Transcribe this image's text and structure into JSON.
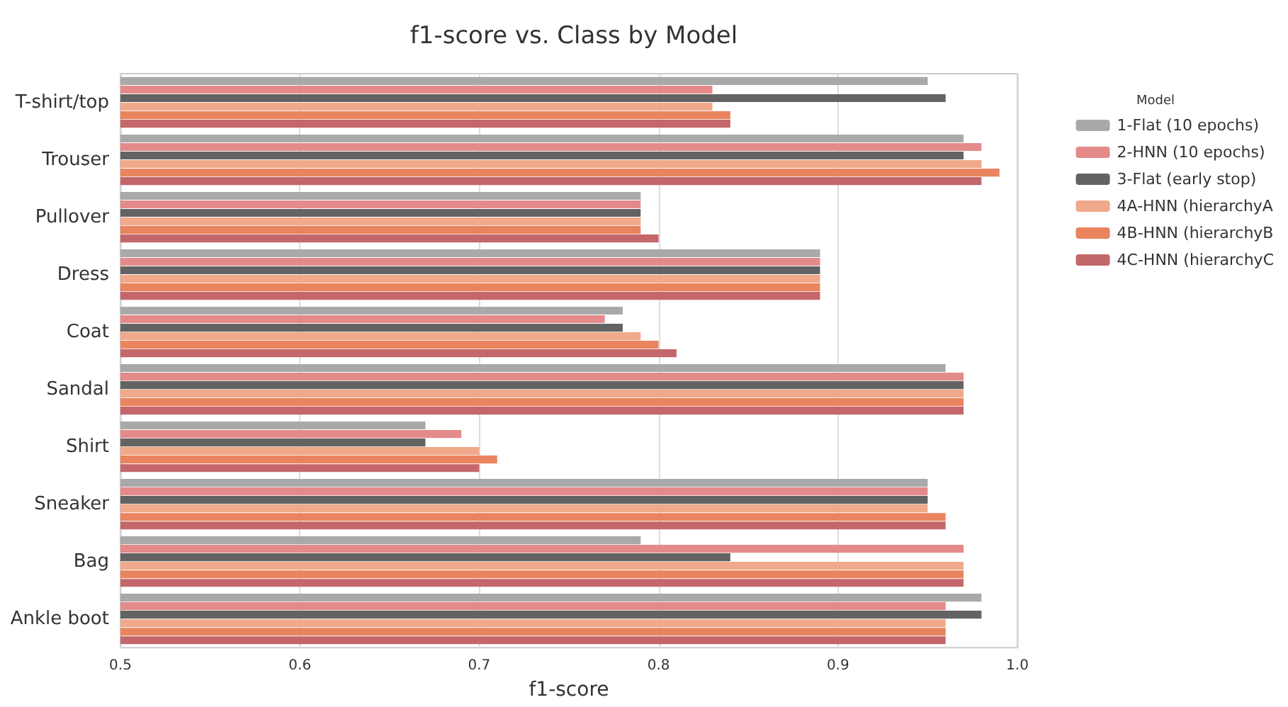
{
  "chart_data": {
    "type": "bar",
    "orientation": "horizontal",
    "title": "f1-score vs. Class by Model",
    "xlabel": "f1-score",
    "legend_title": "Model",
    "legend": "right",
    "grid": "x",
    "categories": [
      "T-shirt/top",
      "Trouser",
      "Pullover",
      "Dress",
      "Coat",
      "Sandal",
      "Shirt",
      "Sneaker",
      "Bag",
      "Ankle boot"
    ],
    "xlim": [
      0.5,
      1.0
    ],
    "xticks": [
      0.5,
      0.6,
      0.7,
      0.8,
      0.9,
      {
        "value": 1.0,
        "label": "1.0"
      }
    ],
    "series": [
      {
        "name": "1-Flat (10 epochs)",
        "color": "#a9a9a9",
        "values": [
          0.95,
          0.97,
          0.79,
          0.89,
          0.78,
          0.96,
          0.67,
          0.95,
          0.79,
          0.98
        ]
      },
      {
        "name": "2-HNN (10 epochs)",
        "color": "#e48a8a",
        "values": [
          0.83,
          0.98,
          0.79,
          0.89,
          0.77,
          0.97,
          0.69,
          0.95,
          0.97,
          0.96
        ]
      },
      {
        "name": "3-Flat (early stop)",
        "color": "#636363",
        "values": [
          0.96,
          0.97,
          0.79,
          0.89,
          0.78,
          0.97,
          0.67,
          0.95,
          0.84,
          0.98
        ]
      },
      {
        "name": "4A-HNN (hierarchyA",
        "color": "#f0a98a",
        "values": [
          0.83,
          0.98,
          0.79,
          0.89,
          0.79,
          0.97,
          0.7,
          0.95,
          0.97,
          0.96
        ]
      },
      {
        "name": "4B-HNN (hierarchyB",
        "color": "#e9845e",
        "values": [
          0.84,
          0.99,
          0.79,
          0.89,
          0.8,
          0.97,
          0.71,
          0.96,
          0.97,
          0.96
        ]
      },
      {
        "name": "4C-HNN (hierarchyC",
        "color": "#c4676a",
        "values": [
          0.84,
          0.98,
          0.8,
          0.89,
          0.81,
          0.97,
          0.7,
          0.96,
          0.97,
          0.96
        ]
      }
    ]
  }
}
